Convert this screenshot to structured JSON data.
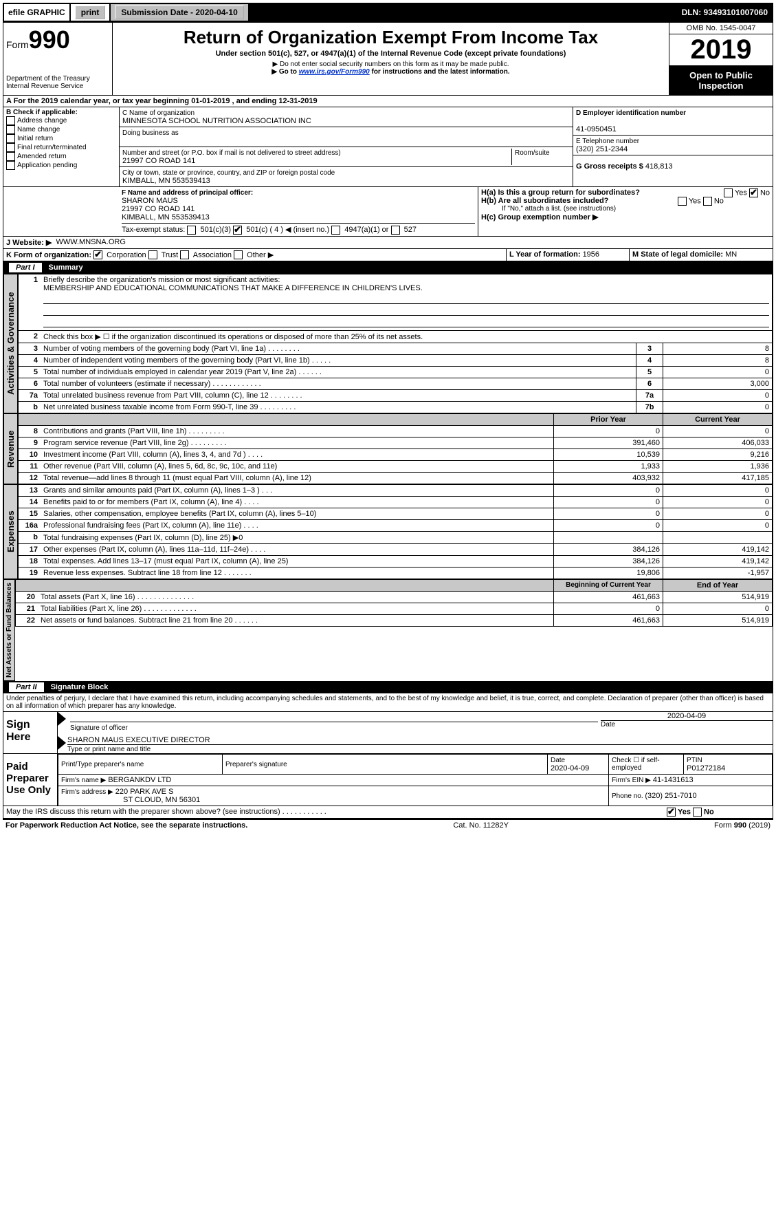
{
  "topbar": {
    "efile": "efile GRAPHIC",
    "print": "print",
    "submission_label": "Submission Date - 2020-04-10",
    "dln": "DLN: 93493101007060"
  },
  "header": {
    "form_prefix": "Form",
    "form_number": "990",
    "dept": "Department of the Treasury",
    "irs": "Internal Revenue Service",
    "title": "Return of Organization Exempt From Income Tax",
    "subtitle": "Under section 501(c), 527, or 4947(a)(1) of the Internal Revenue Code (except private foundations)",
    "note1": "▶ Do not enter social security numbers on this form as it may be made public.",
    "note2_pre": "▶ Go to ",
    "note2_link": "www.irs.gov/Form990",
    "note2_post": " for instructions and the latest information.",
    "omb": "OMB No. 1545-0047",
    "year": "2019",
    "inspect": "Open to Public Inspection"
  },
  "sectionA": "A For the 2019 calendar year, or tax year beginning 01-01-2019    , and ending 12-31-2019",
  "colB": {
    "label": "B Check if applicable:",
    "items": [
      "Address change",
      "Name change",
      "Initial return",
      "Final return/terminated",
      "Amended return",
      "Application pending"
    ]
  },
  "colC": {
    "name_label": "C Name of organization",
    "name": "MINNESOTA SCHOOL NUTRITION ASSOCIATION INC",
    "dba_label": "Doing business as",
    "addr_label": "Number and street (or P.O. box if mail is not delivered to street address)",
    "room_label": "Room/suite",
    "addr": "21997 CO ROAD 141",
    "city_label": "City or town, state or province, country, and ZIP or foreign postal code",
    "city": "KIMBALL, MN  553539413"
  },
  "colD": {
    "d_label": "D Employer identification number",
    "ein": "41-0950451",
    "e_label": "E Telephone number",
    "phone": "(320) 251-2344",
    "g_label": "G Gross receipts $ ",
    "g_val": "418,813"
  },
  "rowF": {
    "f_label": "F  Name and address of principal officer:",
    "f_name": "SHARON MAUS",
    "f_addr1": "21997 CO ROAD 141",
    "f_addr2": "KIMBALL, MN  553539413",
    "ha_label": "H(a)  Is this a group return for subordinates?",
    "hb_label": "H(b)  Are all subordinates included?",
    "hb_note": "If \"No,\" attach a list. (see instructions)",
    "hc_label": "H(c)  Group exemption number ▶"
  },
  "rowI": {
    "label": "Tax-exempt status:",
    "opt1": "501(c)(3)",
    "opt2": "501(c) ( 4 ) ◀ (insert no.)",
    "opt3": "4947(a)(1) or",
    "opt4": "527"
  },
  "rowJ": {
    "label": "J Website: ▶",
    "val": "WWW.MNSNA.ORG"
  },
  "rowK": {
    "label": "K Form of organization:",
    "corp": "Corporation",
    "trust": "Trust",
    "assoc": "Association",
    "other": "Other ▶",
    "l_label": "L Year of formation: ",
    "l_val": "1956",
    "m_label": "M State of legal domicile: ",
    "m_val": "MN"
  },
  "part1": {
    "title": "Part I",
    "heading": "Summary",
    "line1_label": "Briefly describe the organization's mission or most significant activities:",
    "line1_val": "MEMBERSHIP AND EDUCATIONAL COMMUNICATIONS THAT MAKE A DIFFERENCE IN CHILDREN'S LIVES.",
    "line2": "Check this box ▶ ☐  if the organization discontinued its operations or disposed of more than 25% of its net assets.",
    "rows_gov": [
      {
        "n": "3",
        "d": "Number of voting members of the governing body (Part VI, line 1a)   .    .    .    .    .    .    .    .",
        "b": "3",
        "v": "8"
      },
      {
        "n": "4",
        "d": "Number of independent voting members of the governing body (Part VI, line 1b)   .    .    .    .    .",
        "b": "4",
        "v": "8"
      },
      {
        "n": "5",
        "d": "Total number of individuals employed in calendar year 2019 (Part V, line 2a)   .    .    .    .    .    .",
        "b": "5",
        "v": "0"
      },
      {
        "n": "6",
        "d": "Total number of volunteers (estimate if necessary)   .    .    .    .    .    .    .    .    .    .    .    .",
        "b": "6",
        "v": "3,000"
      },
      {
        "n": "7a",
        "d": "Total unrelated business revenue from Part VIII, column (C), line 12   .    .    .    .    .    .    .    .",
        "b": "7a",
        "v": "0"
      },
      {
        "n": "b",
        "d": "Net unrelated business taxable income from Form 990-T, line 39   .    .    .    .    .    .    .    .    .",
        "b": "7b",
        "v": "0"
      }
    ],
    "col_prior": "Prior Year",
    "col_current": "Current Year",
    "rows_rev": [
      {
        "n": "8",
        "d": "Contributions and grants (Part VIII, line 1h)   .    .    .    .    .    .    .    .    .",
        "p": "0",
        "c": "0"
      },
      {
        "n": "9",
        "d": "Program service revenue (Part VIII, line 2g)   .    .    .    .    .    .    .    .    .",
        "p": "391,460",
        "c": "406,033"
      },
      {
        "n": "10",
        "d": "Investment income (Part VIII, column (A), lines 3, 4, and 7d )   .    .    .    .",
        "p": "10,539",
        "c": "9,216"
      },
      {
        "n": "11",
        "d": "Other revenue (Part VIII, column (A), lines 5, 6d, 8c, 9c, 10c, and 11e)",
        "p": "1,933",
        "c": "1,936"
      },
      {
        "n": "12",
        "d": "Total revenue—add lines 8 through 11 (must equal Part VIII, column (A), line 12)",
        "p": "403,932",
        "c": "417,185"
      }
    ],
    "rows_exp": [
      {
        "n": "13",
        "d": "Grants and similar amounts paid (Part IX, column (A), lines 1–3 )   .    .    .",
        "p": "0",
        "c": "0"
      },
      {
        "n": "14",
        "d": "Benefits paid to or for members (Part IX, column (A), line 4)   .    .    .    .",
        "p": "0",
        "c": "0"
      },
      {
        "n": "15",
        "d": "Salaries, other compensation, employee benefits (Part IX, column (A), lines 5–10)",
        "p": "0",
        "c": "0"
      },
      {
        "n": "16a",
        "d": "Professional fundraising fees (Part IX, column (A), line 11e)   .    .    .    .",
        "p": "0",
        "c": "0"
      },
      {
        "n": "b",
        "d": "Total fundraising expenses (Part IX, column (D), line 25) ▶0",
        "p": "",
        "c": "",
        "shade": true
      },
      {
        "n": "17",
        "d": "Other expenses (Part IX, column (A), lines 11a–11d, 11f–24e)   .    .    .    .",
        "p": "384,126",
        "c": "419,142"
      },
      {
        "n": "18",
        "d": "Total expenses. Add lines 13–17 (must equal Part IX, column (A), line 25)",
        "p": "384,126",
        "c": "419,142"
      },
      {
        "n": "19",
        "d": "Revenue less expenses. Subtract line 18 from line 12   .    .    .    .    .    .    .",
        "p": "19,806",
        "c": "-1,957"
      }
    ],
    "col_begin": "Beginning of Current Year",
    "col_end": "End of Year",
    "rows_net": [
      {
        "n": "20",
        "d": "Total assets (Part X, line 16)   .    .    .    .    .    .    .    .    .    .    .    .    .    .",
        "p": "461,663",
        "c": "514,919"
      },
      {
        "n": "21",
        "d": "Total liabilities (Part X, line 26)   .    .    .    .    .    .    .    .    .    .    .    .    .",
        "p": "0",
        "c": "0"
      },
      {
        "n": "22",
        "d": "Net assets or fund balances. Subtract line 21 from line 20   .    .    .    .    .    .",
        "p": "461,663",
        "c": "514,919"
      }
    ],
    "tab_gov": "Activities & Governance",
    "tab_rev": "Revenue",
    "tab_exp": "Expenses",
    "tab_net": "Net Assets or Fund Balances"
  },
  "part2": {
    "title": "Part II",
    "heading": "Signature Block",
    "perjury": "Under penalties of perjury, I declare that I have examined this return, including accompanying schedules and statements, and to the best of my knowledge and belief, it is true, correct, and complete. Declaration of preparer (other than officer) is based on all information of which preparer has any knowledge.",
    "sign_here": "Sign Here",
    "sig_officer": "Signature of officer",
    "sig_date": "2020-04-09",
    "date_label": "Date",
    "name_title": "SHARON MAUS  EXECUTIVE DIRECTOR",
    "type_label": "Type or print name and title",
    "paid_prep": "Paid Preparer Use Only",
    "pt_name_label": "Print/Type preparer's name",
    "pt_sig_label": "Preparer's signature",
    "pt_date_label": "Date",
    "pt_date": "2020-04-09",
    "pt_check_label": "Check ☐ if self-employed",
    "ptin_label": "PTIN",
    "ptin": "P01272184",
    "firm_name_label": "Firm's name      ▶",
    "firm_name": "BERGANKDV LTD",
    "firm_ein_label": "Firm's EIN ▶",
    "firm_ein": "41-1431613",
    "firm_addr_label": "Firm's address ▶",
    "firm_addr1": "220 PARK AVE S",
    "firm_addr2": "ST CLOUD, MN  56301",
    "phone_label": "Phone no. ",
    "phone": "(320) 251-7010",
    "discuss": "May the IRS discuss this return with the preparer shown above? (see instructions)    .    .    .    .    .    .    .    .    .    .    .",
    "yes": "Yes",
    "no": "No"
  },
  "footer": {
    "paperwork": "For Paperwork Reduction Act Notice, see the separate instructions.",
    "cat": "Cat. No. 11282Y",
    "form": "Form 990 (2019)"
  }
}
